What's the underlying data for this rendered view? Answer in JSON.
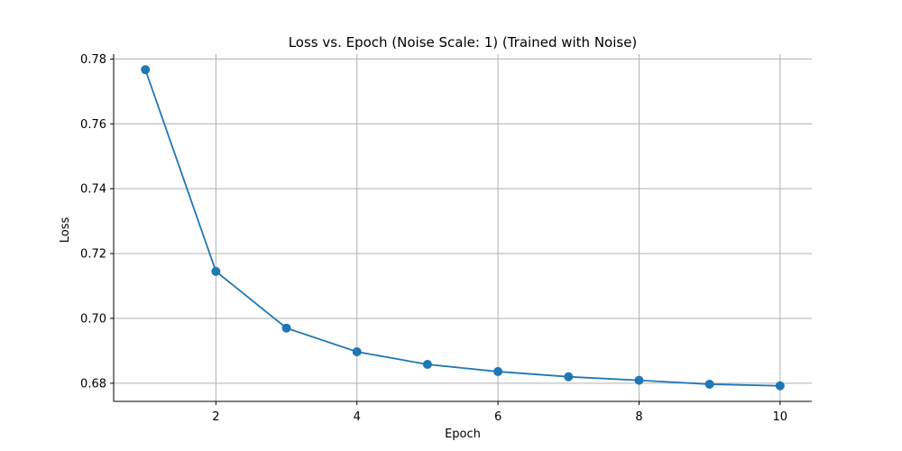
{
  "chart_data": {
    "type": "line",
    "title": "Loss vs. Epoch (Noise Scale: 1) (Trained with Noise)",
    "xlabel": "Epoch",
    "ylabel": "Loss",
    "x": [
      1,
      2,
      3,
      4,
      5,
      6,
      7,
      8,
      9,
      10
    ],
    "series": [
      {
        "values": [
          0.7767,
          0.7145,
          0.697,
          0.6897,
          0.6858,
          0.6836,
          0.682,
          0.6809,
          0.6797,
          0.6792
        ]
      }
    ],
    "xlim": [
      0.55,
      10.45
    ],
    "ylim": [
      0.6744,
      0.7815
    ],
    "x_ticks": [
      2,
      4,
      6,
      8,
      10
    ],
    "y_ticks": [
      0.68,
      0.7,
      0.72,
      0.74,
      0.76,
      0.78
    ],
    "x_tick_labels": [
      "2",
      "4",
      "6",
      "8",
      "10"
    ],
    "y_tick_labels": [
      "0.68",
      "0.70",
      "0.72",
      "0.74",
      "0.76",
      "0.78"
    ],
    "grid": true,
    "marker": "circle",
    "colors": {
      "line": "#1f77b4",
      "grid": "#b0b0b0",
      "axis": "#000000"
    }
  }
}
